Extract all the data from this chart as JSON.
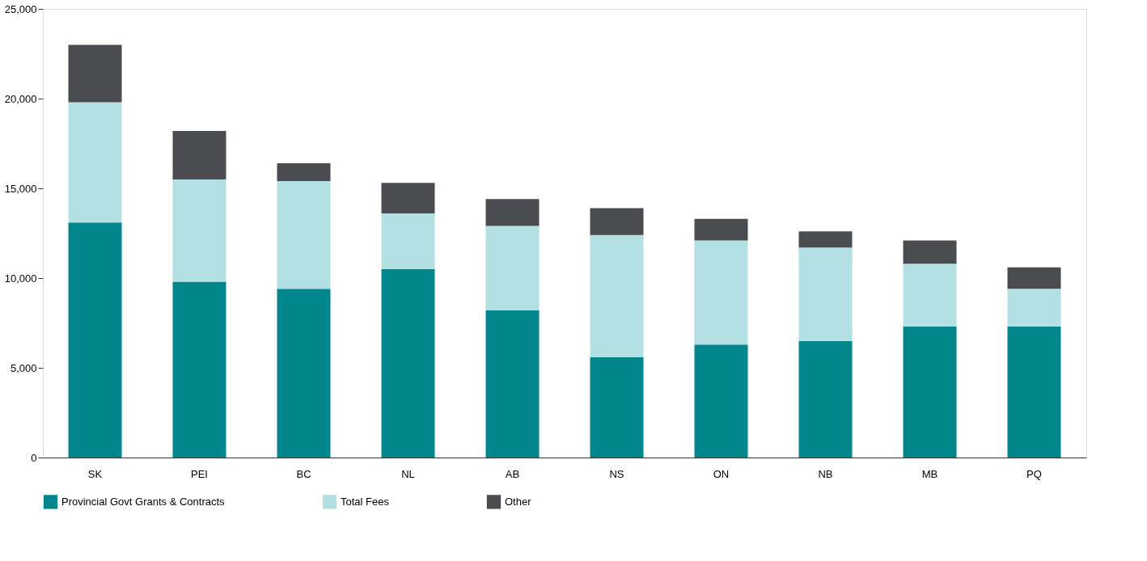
{
  "chart_data": {
    "type": "bar",
    "stacked": true,
    "categories": [
      "SK",
      "PEI",
      "BC",
      "NL",
      "AB",
      "NS",
      "ON",
      "NB",
      "MB",
      "PQ"
    ],
    "series": [
      {
        "name": "Provincial Govt Grants & Contracts",
        "color": "#00868b",
        "values": [
          13100,
          9800,
          9400,
          10500,
          8200,
          5600,
          6300,
          6500,
          7300,
          7300
        ]
      },
      {
        "name": "Total Fees",
        "color": "#b3e0e3",
        "values": [
          6700,
          5700,
          6000,
          3100,
          4700,
          6800,
          5800,
          5200,
          3500,
          2100
        ]
      },
      {
        "name": "Other",
        "color": "#4a4c50",
        "values": [
          3200,
          2700,
          1000,
          1700,
          1500,
          1500,
          1200,
          900,
          1300,
          1200
        ]
      }
    ],
    "ylim": [
      0,
      25000
    ],
    "yticks": [
      0,
      {
        "value": 5000,
        "label": "5,000"
      },
      {
        "value": 10000,
        "label": "10,000"
      },
      {
        "value": 15000,
        "label": "15,000"
      },
      {
        "value": 20000,
        "label": "20,000"
      },
      {
        "value": 25000,
        "label": "25,000"
      }
    ],
    "legend": "bottom"
  }
}
